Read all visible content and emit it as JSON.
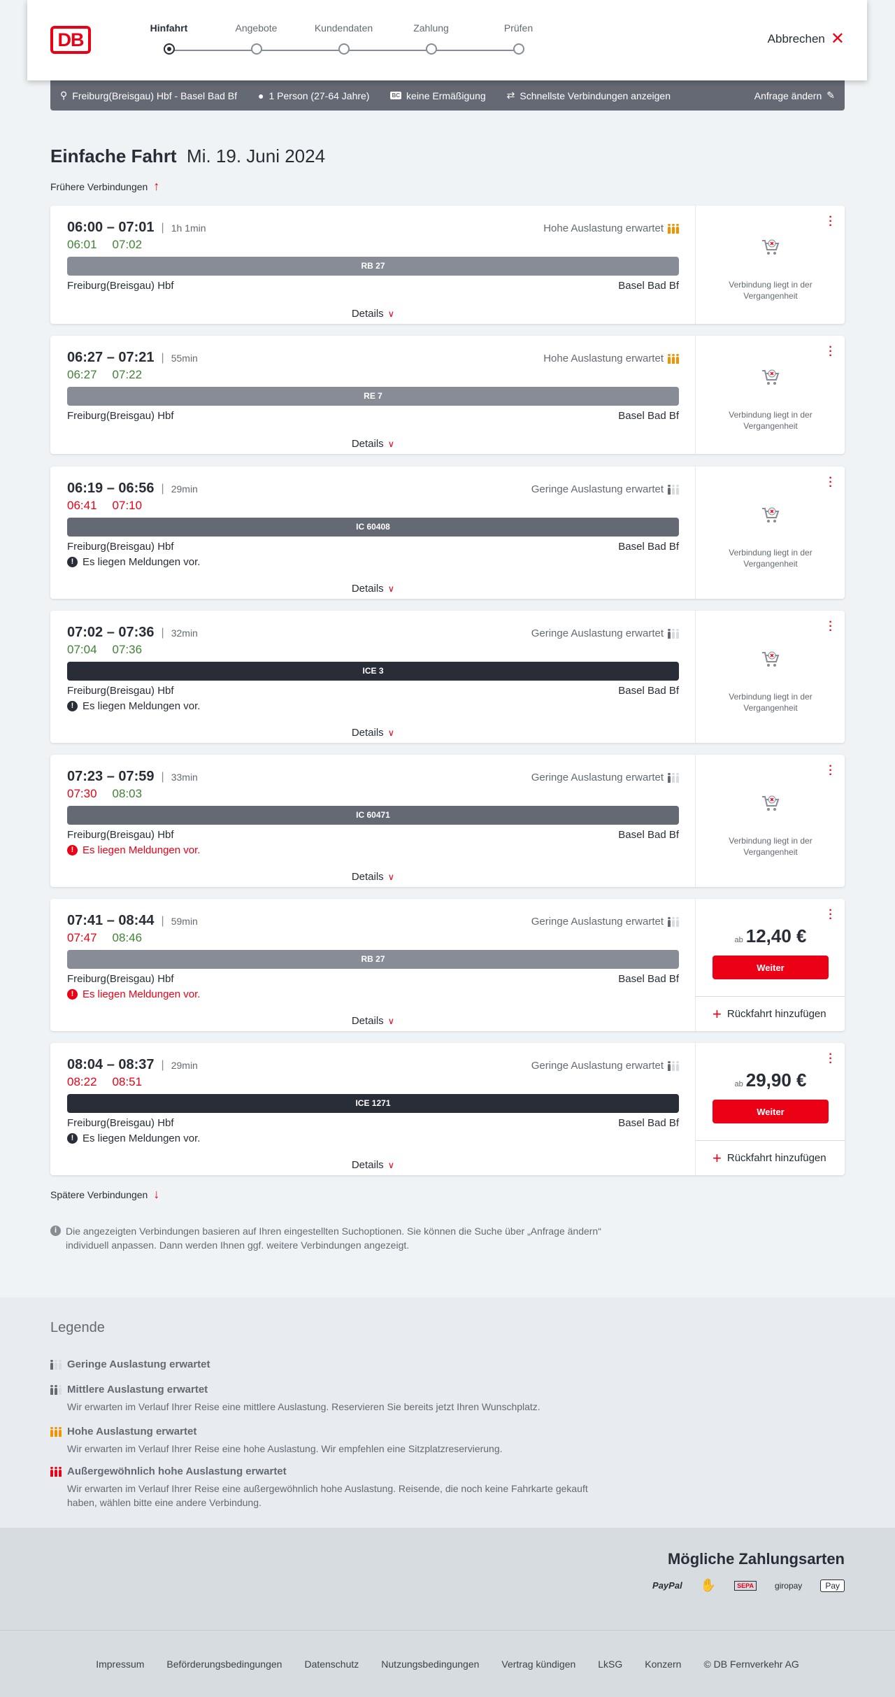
{
  "header": {
    "logo": "DB",
    "steps": [
      "Hinfahrt",
      "Angebote",
      "Kundendaten",
      "Zahlung",
      "Prüfen"
    ],
    "active_step": 0,
    "cancel_label": "Abbrechen"
  },
  "summary": {
    "route": "Freiburg(Breisgau) Hbf - Basel Bad Bf",
    "travellers": "1 Person (27-64 Jahre)",
    "discount_badge": "BC",
    "discount": "keine Ermäßigung",
    "option": "Schnellste Verbindungen anzeigen",
    "edit_label": "Anfrage ändern"
  },
  "page": {
    "title": "Einfache Fahrt",
    "date": "Mi. 19. Juni 2024",
    "earlier": "Frühere Verbindungen",
    "later": "Spätere Verbindungen",
    "info": "Die angezeigten Verbindungen basieren auf Ihren eingestellten Suchoptionen. Sie können die Suche über „Anfrage ändern“ individuell anpassen. Dann werden Ihnen ggf. weitere Verbindungen angezeigt."
  },
  "labels": {
    "details": "Details",
    "past": "Verbindung liegt in der Vergangenheit",
    "ab": "ab",
    "weiter": "Weiter",
    "return": "Rückfahrt hinzufügen"
  },
  "colors": {
    "accent": "#ec0016",
    "on_time": "#408335",
    "regional": "#878c96",
    "ic": "#646973",
    "ice": "#282d37",
    "high_load": "#f39200"
  },
  "connections": [
    {
      "times": "06:00 – 07:01",
      "duration": "1h 1min",
      "dep_real": "06:01",
      "dep_status": "green",
      "arr_real": "07:02",
      "arr_status": "green",
      "occupancy": "Hohe Auslastung erwartet",
      "occ_level": "high",
      "train": "RB 27",
      "train_type": "regional",
      "from": "Freiburg(Breisgau) Hbf",
      "to": "Basel Bad Bf",
      "message": "",
      "past": true
    },
    {
      "times": "06:27 – 07:21",
      "duration": "55min",
      "dep_real": "06:27",
      "dep_status": "green",
      "arr_real": "07:22",
      "arr_status": "green",
      "occupancy": "Hohe Auslastung erwartet",
      "occ_level": "high",
      "train": "RE 7",
      "train_type": "regional",
      "from": "Freiburg(Breisgau) Hbf",
      "to": "Basel Bad Bf",
      "message": "",
      "past": true
    },
    {
      "times": "06:19 – 06:56",
      "duration": "29min",
      "dep_real": "06:41",
      "dep_status": "red",
      "arr_real": "07:10",
      "arr_status": "red",
      "occupancy": "Geringe Auslastung erwartet",
      "occ_level": "low",
      "train": "IC 60408",
      "train_type": "ic",
      "from": "Freiburg(Breisgau) Hbf",
      "to": "Basel Bad Bf",
      "message": "Es liegen Meldungen vor.",
      "message_status": "normal",
      "past": true
    },
    {
      "times": "07:02 – 07:36",
      "duration": "32min",
      "dep_real": "07:04",
      "dep_status": "green",
      "arr_real": "07:36",
      "arr_status": "green",
      "occupancy": "Geringe Auslastung erwartet",
      "occ_level": "low",
      "train": "ICE 3",
      "train_type": "ice",
      "from": "Freiburg(Breisgau) Hbf",
      "to": "Basel Bad Bf",
      "message": "Es liegen Meldungen vor.",
      "message_status": "normal",
      "past": true
    },
    {
      "times": "07:23 – 07:59",
      "duration": "33min",
      "dep_real": "07:30",
      "dep_status": "red",
      "arr_real": "08:03",
      "arr_status": "green",
      "occupancy": "Geringe Auslastung erwartet",
      "occ_level": "low",
      "train": "IC 60471",
      "train_type": "ic",
      "from": "Freiburg(Breisgau) Hbf",
      "to": "Basel Bad Bf",
      "message": "Es liegen Meldungen vor.",
      "message_status": "red",
      "past": true
    },
    {
      "times": "07:41 – 08:44",
      "duration": "59min",
      "dep_real": "07:47",
      "dep_status": "red",
      "arr_real": "08:46",
      "arr_status": "green",
      "occupancy": "Geringe Auslastung erwartet",
      "occ_level": "low",
      "train": "RB 27",
      "train_type": "regional",
      "from": "Freiburg(Breisgau) Hbf",
      "to": "Basel Bad Bf",
      "message": "Es liegen Meldungen vor.",
      "message_status": "red",
      "past": false,
      "price": "12,40 €"
    },
    {
      "times": "08:04 – 08:37",
      "duration": "29min",
      "dep_real": "08:22",
      "dep_status": "red",
      "arr_real": "08:51",
      "arr_status": "red",
      "occupancy": "Geringe Auslastung erwartet",
      "occ_level": "low",
      "train": "ICE 1271",
      "train_type": "ice",
      "from": "Freiburg(Breisgau) Hbf",
      "to": "Basel Bad Bf",
      "message": "Es liegen Meldungen vor.",
      "message_status": "normal",
      "past": false,
      "price": "29,90 €"
    }
  ],
  "legend": {
    "title": "Legende",
    "items": [
      {
        "level": "low",
        "title": "Geringe Auslastung erwartet",
        "text": ""
      },
      {
        "level": "mid",
        "title": "Mittlere Auslastung erwartet",
        "text": "Wir erwarten im Verlauf Ihrer Reise eine mittlere Auslastung. Reservieren Sie bereits jetzt Ihren Wunschplatz."
      },
      {
        "level": "high",
        "title": "Hohe Auslastung erwartet",
        "text": "Wir erwarten im Verlauf Ihrer Reise eine hohe Auslastung. Wir empfehlen eine Sitzplatzreservierung."
      },
      {
        "level": "ext",
        "title": "Außergewöhnlich hohe Auslastung erwartet",
        "text": "Wir erwarten im Verlauf Ihrer Reise eine außergewöhnlich hohe Auslastung. Reisende, die noch keine Fahrkarte gekauft haben, wählen bitte eine andere Verbindung."
      }
    ]
  },
  "payment": {
    "title": "Mögliche Zahlungsarten",
    "methods": [
      "PayPal",
      "SEPA",
      "giropay",
      "Pay"
    ],
    "icons": [
      "paypal-icon",
      "contactless-card-icon",
      "sepa-icon",
      "giropay-icon",
      "apple-pay-icon"
    ]
  },
  "footer": {
    "links": [
      "Impressum",
      "Beförderungsbedingungen",
      "Datenschutz",
      "Nutzungsbedingungen",
      "Vertrag kündigen",
      "LkSG",
      "Konzern",
      "© DB Fernverkehr AG"
    ]
  }
}
